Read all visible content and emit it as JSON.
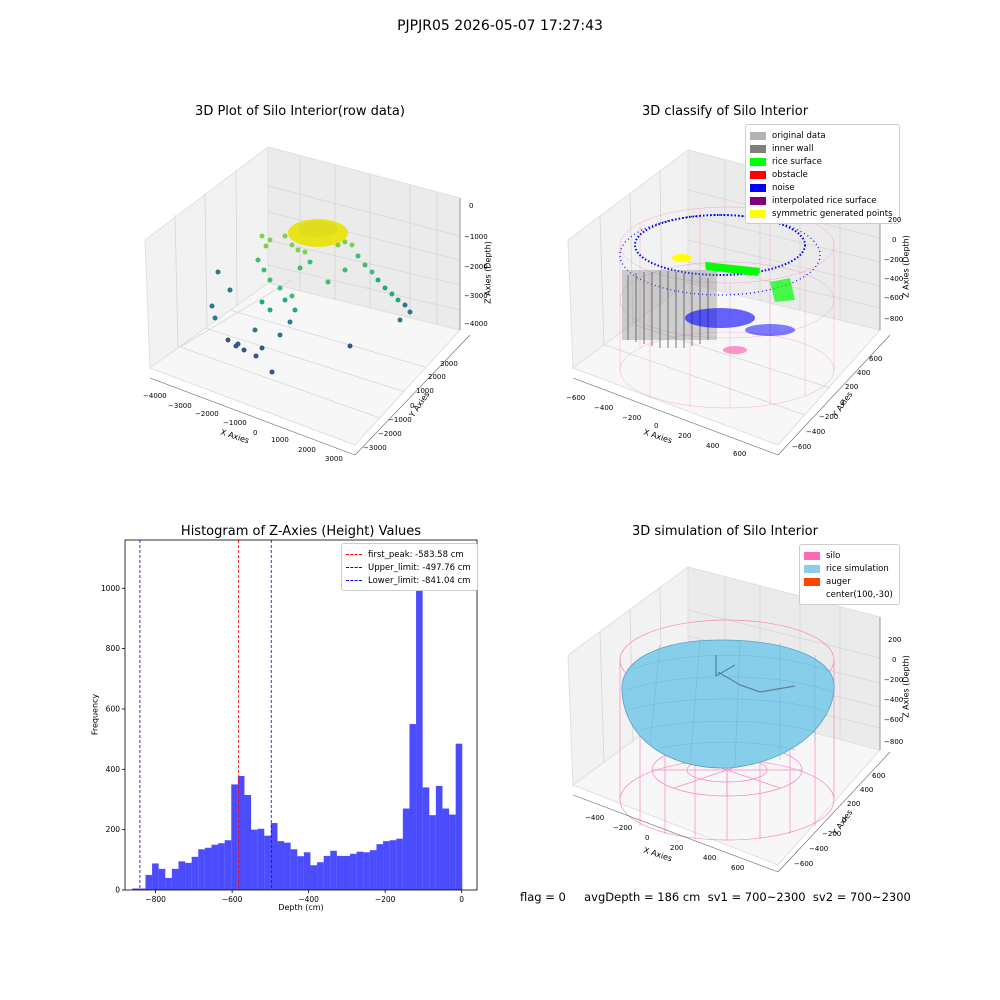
{
  "suptitle": "PJPJR05 2026-05-07 17:27:43",
  "footer": "flag = 0     avgDepth = 186 cm  sv1 = 700~2300  sv2 = 700~2300",
  "panels": {
    "raw": {
      "title": "3D Plot of Silo Interior(row data)",
      "xlabel": "X Axies",
      "ylabel": "Y Axies",
      "zlabel": "Z Axies (Depth)",
      "xticks": [
        "−4000",
        "−3000",
        "−2000",
        "−1000",
        "0",
        "1000",
        "2000",
        "3000"
      ],
      "yticks": [
        "3000",
        "2000",
        "1000",
        "0",
        "−1000",
        "−2000",
        "−3000"
      ],
      "zticks": [
        "0",
        "−1000",
        "−2000",
        "−3000",
        "−4000"
      ]
    },
    "classify": {
      "title": "3D classify of Silo Interior",
      "xlabel": "X Axies",
      "ylabel": "Y Axies",
      "zlabel": "Z Axies (Depth)",
      "xticks": [
        "−600",
        "−400",
        "−200",
        "0",
        "200",
        "400",
        "600"
      ],
      "yticks": [
        "600",
        "400",
        "200",
        "0",
        "−200",
        "−400",
        "−600"
      ],
      "zticks": [
        "200",
        "0",
        "−200",
        "−400",
        "−600",
        "−800"
      ],
      "legend": [
        {
          "label": "original data",
          "color": "#b3b3b3"
        },
        {
          "label": "inner wall",
          "color": "#808080"
        },
        {
          "label": "rice surface",
          "color": "#00ff00"
        },
        {
          "label": "obstacle",
          "color": "#ff0000"
        },
        {
          "label": "noise",
          "color": "#0000ff"
        },
        {
          "label": "interpolated rice surface",
          "color": "#800080"
        },
        {
          "label": "symmetric generated points",
          "color": "#ffff00"
        }
      ]
    },
    "simulation": {
      "title": "3D simulation of Silo Interior",
      "xlabel": "X Axies",
      "ylabel": "Y Axies",
      "zlabel": "Z Axies (Depth)",
      "xticks": [
        "−400",
        "−200",
        "0",
        "200",
        "400",
        "600"
      ],
      "yticks": [
        "600",
        "400",
        "200",
        "0",
        "−200",
        "−400",
        "−600"
      ],
      "zticks": [
        "200",
        "0",
        "−200",
        "−400",
        "−600",
        "−800"
      ],
      "legend": [
        {
          "label": "silo",
          "color": "#ff69b4"
        },
        {
          "label": "rice simulation",
          "color": "#87ceeb"
        },
        {
          "label": "auger",
          "color": "#ff4500"
        },
        {
          "label": "center(100,-30)",
          "color": ""
        }
      ]
    }
  },
  "chart_data": [
    {
      "type": "bar",
      "title": "Histogram of Z-Axies (Height) Values",
      "xlabel": "Depth (cm)",
      "ylabel": "Frequency",
      "bar_color": "#0000ff",
      "bar_alpha": 0.7,
      "xlim": [
        -880,
        40
      ],
      "ylim": [
        0,
        1160
      ],
      "xticks": [
        -800,
        -600,
        -400,
        -200,
        0
      ],
      "yticks": [
        0,
        200,
        400,
        600,
        800,
        1000
      ],
      "bin_start": -861,
      "bin_width": 17.25,
      "values": [
        5,
        5,
        50,
        88,
        70,
        40,
        70,
        95,
        90,
        110,
        135,
        140,
        150,
        155,
        165,
        350,
        378,
        315,
        200,
        203,
        180,
        222,
        162,
        157,
        135,
        112,
        125,
        82,
        92,
        113,
        130,
        113,
        113,
        120,
        127,
        125,
        132,
        152,
        162,
        165,
        170,
        270,
        550,
        1110,
        340,
        248,
        345,
        270,
        250,
        485
      ],
      "lines": [
        {
          "label": "first_peak: -583.58 cm",
          "x": -583.58,
          "color": "#ff0000"
        },
        {
          "label": "Upper_limit: -497.76 cm",
          "x": -497.76,
          "color": "#0000ff"
        },
        {
          "label": "Lower_limit: -841.04 cm",
          "x": -841.04,
          "color": "#0000ff"
        }
      ],
      "legend_position": "upper right"
    }
  ]
}
